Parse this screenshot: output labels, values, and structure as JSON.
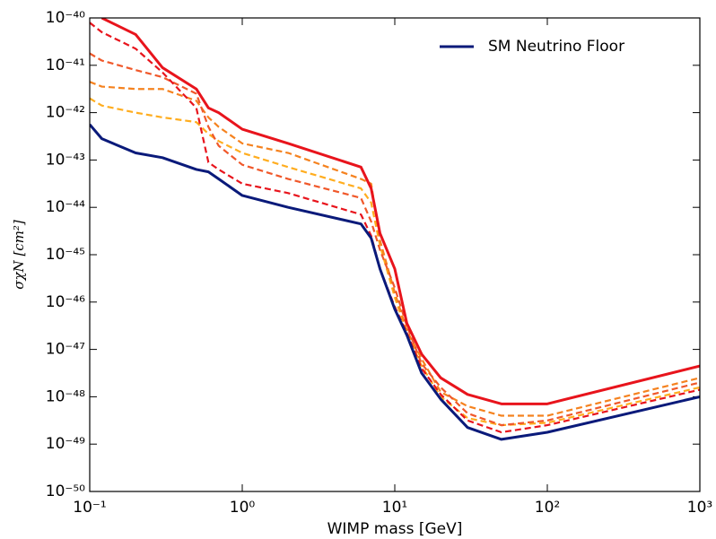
{
  "chart_data": {
    "type": "line",
    "xlabel": "WIMP mass [GeV]",
    "ylabel": "σχN [cm²]",
    "xscale": "log",
    "yscale": "log",
    "grid": false,
    "legend": "upper right",
    "xlim": [
      0.1,
      1000
    ],
    "ylim": [
      1e-50,
      1e-40
    ],
    "xticks": [
      {
        "value": 0.1,
        "label": "10⁻¹"
      },
      {
        "value": 1,
        "label": "10⁰"
      },
      {
        "value": 10,
        "label": "10¹"
      },
      {
        "value": 100,
        "label": "10²"
      },
      {
        "value": 1000,
        "label": "10³"
      }
    ],
    "yticks": [
      {
        "value": 1e-50,
        "label": "10⁻⁵⁰"
      },
      {
        "value": 1e-49,
        "label": "10⁻⁴⁹"
      },
      {
        "value": 1e-48,
        "label": "10⁻⁴⁸"
      },
      {
        "value": 1e-47,
        "label": "10⁻⁴⁷"
      },
      {
        "value": 1e-46,
        "label": "10⁻⁴⁶"
      },
      {
        "value": 1e-45,
        "label": "10⁻⁴⁵"
      },
      {
        "value": 1e-44,
        "label": "10⁻⁴⁴"
      },
      {
        "value": 1e-43,
        "label": "10⁻⁴³"
      },
      {
        "value": 1e-42,
        "label": "10⁻⁴²"
      },
      {
        "value": 1e-41,
        "label": "10⁻⁴¹"
      },
      {
        "value": 1e-40,
        "label": "10⁻⁴⁰"
      }
    ],
    "x": [
      0.1,
      0.12,
      0.2,
      0.3,
      0.5,
      0.6,
      0.7,
      1,
      2,
      6,
      7,
      8,
      10,
      12,
      15,
      20,
      30,
      50,
      100,
      1000
    ],
    "series": [
      {
        "color": "#ffad1f",
        "dashed": true,
        "values": [
          2e-42,
          1.41e-42,
          1e-42,
          7.94e-43,
          6.31e-43,
          3.55e-43,
          2.51e-43,
          1.41e-43,
          7.08e-44,
          2.51e-44,
          1.26e-44,
          1.58e-45,
          1.26e-46,
          2.24e-47,
          4.47e-48,
          1e-48,
          3.55e-49,
          2.51e-49,
          2.82e-49,
          1.58e-48
        ]
      },
      {
        "color": "#f5821f",
        "dashed": true,
        "values": [
          4.47e-42,
          3.55e-42,
          3.16e-42,
          3.16e-42,
          1.78e-42,
          7.94e-43,
          5.01e-43,
          2.24e-43,
          1.41e-43,
          3.98e-44,
          3.16e-44,
          2e-45,
          1.58e-46,
          2.51e-47,
          6.31e-48,
          1.26e-48,
          6.31e-49,
          3.98e-49,
          3.98e-49,
          2.51e-48
        ]
      },
      {
        "color": "#f0582a",
        "dashed": true,
        "values": [
          1.78e-41,
          1.26e-41,
          7.94e-42,
          5.62e-42,
          2.51e-42,
          5.01e-43,
          2e-43,
          7.94e-44,
          3.98e-44,
          1.58e-44,
          5.01e-45,
          1.26e-45,
          2e-46,
          3.16e-47,
          5.01e-48,
          1.58e-48,
          4.47e-49,
          2.51e-49,
          3.16e-49,
          2e-48
        ]
      },
      {
        "color": "#e8141c",
        "dashed": true,
        "values": [
          7.94e-41,
          5.01e-41,
          2.24e-41,
          7.08e-42,
          1.26e-42,
          8.91e-44,
          6.31e-44,
          3.16e-44,
          2e-44,
          7.08e-45,
          2.51e-45,
          5.01e-46,
          7.94e-47,
          2.24e-47,
          3.98e-48,
          1.12e-48,
          3.16e-49,
          1.78e-49,
          2.51e-49,
          1.41e-48
        ]
      },
      {
        "color": "#e8141c",
        "dashed": false,
        "values": [
          null,
          1e-40,
          4.47e-41,
          8.91e-42,
          3.16e-42,
          1.26e-42,
          1e-42,
          4.47e-43,
          2.24e-43,
          7.08e-44,
          2.51e-44,
          2.82e-45,
          5.01e-46,
          3.55e-47,
          7.94e-48,
          2.51e-48,
          1.12e-48,
          7.08e-49,
          7.08e-49,
          4.47e-48
        ]
      },
      {
        "name": "SM Neutrino Floor",
        "color": "#0a1a7a",
        "dashed": false,
        "values": [
          5.62e-43,
          2.82e-43,
          1.41e-43,
          1.12e-43,
          6.31e-44,
          5.62e-44,
          3.98e-44,
          1.78e-44,
          1e-44,
          4.47e-45,
          2.24e-45,
          5.01e-46,
          7.08e-47,
          2e-47,
          3.16e-48,
          8.91e-49,
          2.24e-49,
          1.26e-49,
          1.78e-49,
          1e-48
        ]
      }
    ]
  }
}
